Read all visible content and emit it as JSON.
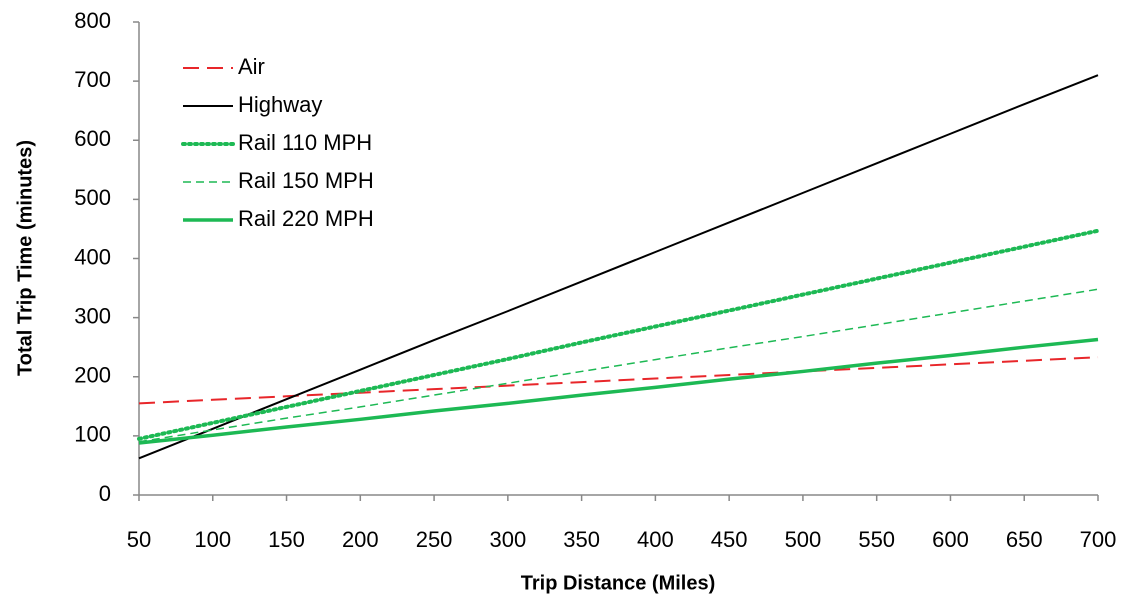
{
  "chart_data": {
    "type": "line",
    "x_label": "Trip Distance (Miles)",
    "y_label": "Total Trip Time (minutes)",
    "x": [
      50,
      100,
      150,
      200,
      250,
      300,
      350,
      400,
      450,
      500,
      550,
      600,
      650,
      700
    ],
    "series": [
      {
        "name": "Air",
        "color": "#e8262a",
        "style": "dashed",
        "width": 2,
        "values": [
          155,
          161,
          167,
          173,
          179,
          185,
          191,
          197,
          203,
          209,
          215,
          221,
          227,
          233
        ]
      },
      {
        "name": "Highway",
        "color": "#000000",
        "style": "solid",
        "width": 2,
        "values": [
          62,
          112,
          162,
          212,
          262,
          311,
          361,
          411,
          461,
          511,
          561,
          611,
          661,
          710
        ]
      },
      {
        "name": "Rail 110 MPH",
        "color": "#1db954",
        "style": "dotted",
        "width": 4,
        "values": [
          95,
          122,
          149,
          176,
          203,
          230,
          258,
          285,
          312,
          339,
          366,
          393,
          420,
          447
        ]
      },
      {
        "name": "Rail 150 MPH",
        "color": "#1db954",
        "style": "dashed",
        "width": 1.5,
        "values": [
          90,
          110,
          130,
          149,
          169,
          189,
          209,
          229,
          249,
          268,
          288,
          308,
          328,
          348
        ]
      },
      {
        "name": "Rail 220 MPH",
        "color": "#1db954",
        "style": "solid",
        "width": 3.5,
        "values": [
          88,
          101,
          115,
          128,
          142,
          155,
          169,
          182,
          196,
          209,
          223,
          236,
          250,
          263
        ]
      }
    ],
    "xlim": [
      50,
      700
    ],
    "xticks": [
      50,
      100,
      150,
      200,
      250,
      300,
      350,
      400,
      450,
      500,
      550,
      600,
      650,
      700
    ],
    "ylim": [
      0,
      800
    ],
    "yticks": [
      0,
      100,
      200,
      300,
      400,
      500,
      600,
      700,
      800
    ],
    "legend": "upper-left"
  }
}
